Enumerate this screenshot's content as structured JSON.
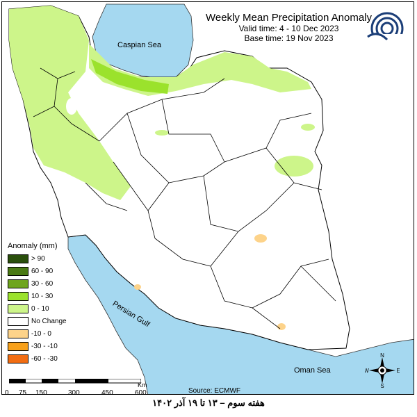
{
  "title": {
    "main": "Weekly Mean Precipitation Anomaly",
    "valid": "Valid time: 4 - 10 Dec 2023",
    "base": "Base time: 19 Nov 2023"
  },
  "labels": {
    "caspian": "Caspian Sea",
    "persian_gulf": "Persian Gulf",
    "oman": "Oman Sea",
    "source": "Source: ECMWF",
    "km": "Km"
  },
  "legend": {
    "title": "Anomaly (mm)",
    "items": [
      {
        "label": "> 90",
        "color": "#2a4f0c"
      },
      {
        "label": "60 - 90",
        "color": "#4a7a14"
      },
      {
        "label": "30 - 60",
        "color": "#6fa51e"
      },
      {
        "label": "10 - 30",
        "color": "#9be22c"
      },
      {
        "label": "0 - 10",
        "color": "#cdf58a"
      },
      {
        "label": "No Change",
        "color": "#ffffff"
      },
      {
        "label": "-10 - 0",
        "color": "#fdd38a"
      },
      {
        "label": "-30 - -10",
        "color": "#f8a11b"
      },
      {
        "label": "-60 - -30",
        "color": "#f26d12"
      }
    ]
  },
  "scale": [
    "0",
    "75",
    "150",
    "300",
    "450",
    "600"
  ],
  "compass": {
    "n": "N",
    "s": "S",
    "e": "E",
    "w": "W"
  },
  "caption": "هفته سوم – ۱۳ تا ۱۹ آذر ۱۴۰۲",
  "colors": {
    "sea": "#a5d8f0",
    "land": "#ffffff",
    "anomaly_light": "#cdf58a",
    "anomaly_mid": "#9be22c",
    "negative": "#fdd38a"
  }
}
